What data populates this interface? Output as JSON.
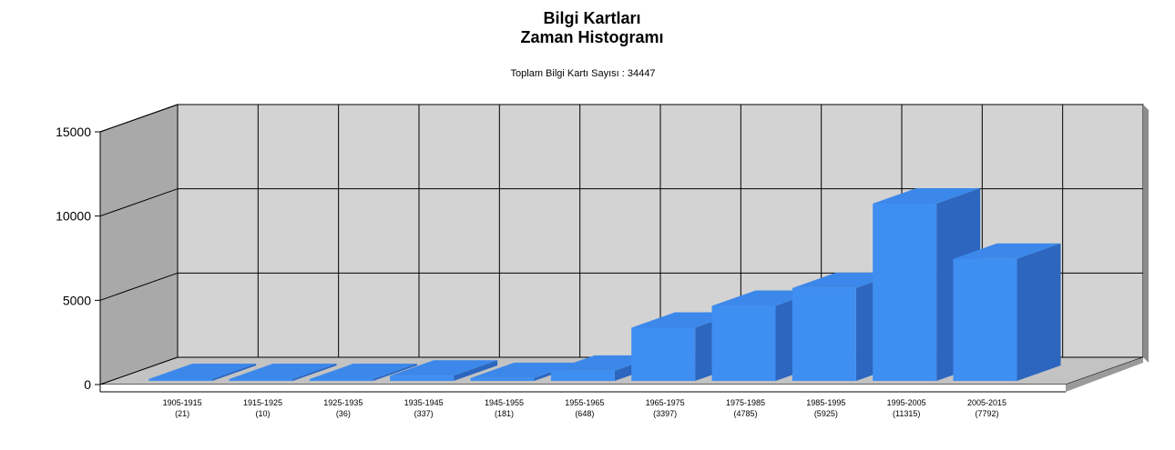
{
  "title_line1": "Bilgi Kartları",
  "title_line2": "Zaman Histogramı",
  "subtitle": "Toplam Bilgi Kartı Sayısı : 34447",
  "colors": {
    "bar_front": "#3f8ef2",
    "bar_top": "#3c88ea",
    "bar_side": "#2c66be",
    "back_wall": "#d3d3d3",
    "left_wall": "#a9a9a9",
    "floor": "#c3c3c3",
    "grid": "#000000"
  },
  "chart_data": {
    "type": "bar",
    "title": "Bilgi Kartları Zaman Histogramı",
    "subtitle": "Toplam Bilgi Kartı Sayısı : 34447",
    "categories": [
      "1905-1915",
      "1915-1925",
      "1925-1935",
      "1935-1945",
      "1945-1955",
      "1955-1965",
      "1965-1975",
      "1975-1985",
      "1985-1995",
      "1995-2005",
      "2005-2015"
    ],
    "category_counts": [
      "(21)",
      "(10)",
      "(36)",
      "(337)",
      "(181)",
      "(648)",
      "(3397)",
      "(4785)",
      "(5925)",
      "(11315)",
      "(7792)"
    ],
    "values": [
      21,
      10,
      36,
      337,
      181,
      648,
      3397,
      4785,
      5925,
      11315,
      7792
    ],
    "y_ticks": [
      "0",
      "5000",
      "10000",
      "15000"
    ],
    "ylim": [
      0,
      15000
    ],
    "grid": true,
    "three_d": true
  }
}
